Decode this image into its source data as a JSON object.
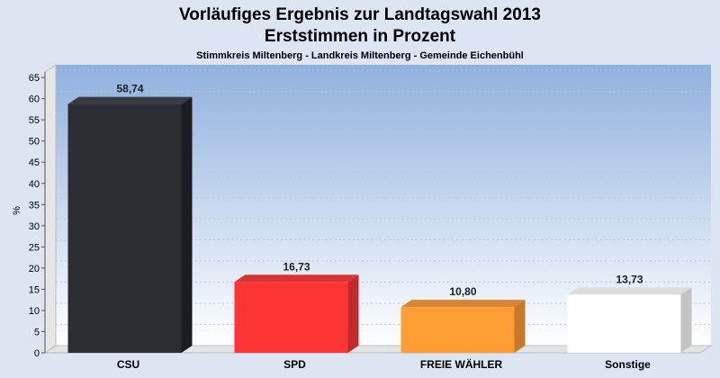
{
  "chart_data": {
    "type": "bar",
    "title": "Vorläufiges Ergebnis zur Landtagswahl 2013",
    "subtitle": "Erststimmen in Prozent",
    "subsubtitle": "Stimmkreis Miltenberg - Landkreis Miltenberg - Gemeinde Eichenbühl",
    "ylabel": "%",
    "xlabel": "",
    "ylim": [
      0,
      68
    ],
    "yticks": [
      "0",
      "5",
      "10",
      "15",
      "20",
      "25",
      "30",
      "35",
      "40",
      "45",
      "50",
      "55",
      "60",
      "65"
    ],
    "categories": [
      "CSU",
      "SPD",
      "FREIE WÄHLER",
      "Sonstige"
    ],
    "values": [
      58.74,
      16.73,
      10.8,
      13.73
    ],
    "value_labels": [
      "58,74",
      "16,73",
      "10,80",
      "13,73"
    ],
    "colors": [
      "#2b2d33",
      "#ff3535",
      "#ff9d35",
      "#ffffff"
    ],
    "side_colors": [
      "#1c1d22",
      "#c42a2a",
      "#c9782a",
      "#c4c4c4"
    ],
    "top_colors": [
      "#3a3c44",
      "#d83434",
      "#d98533",
      "#dcdcdc"
    ],
    "plot_background": [
      "#8fb0de",
      "#ffffff"
    ],
    "grid": true,
    "legend": "none"
  }
}
